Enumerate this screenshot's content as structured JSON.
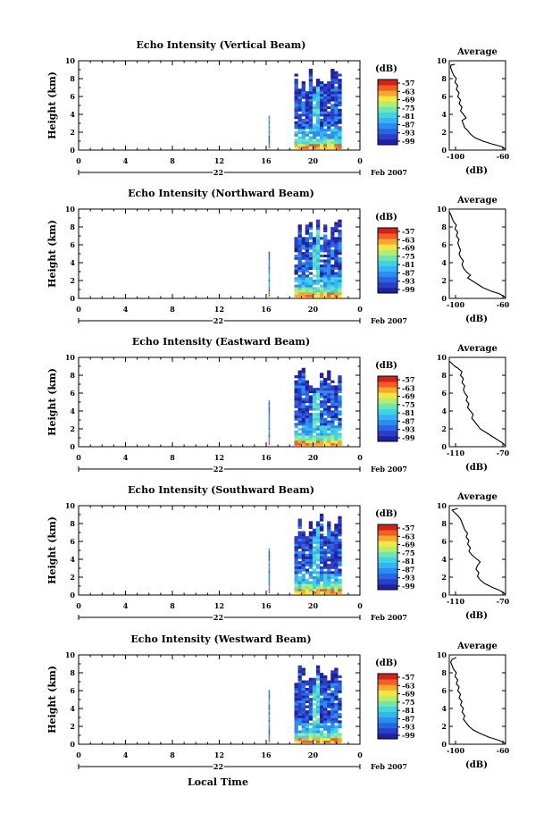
{
  "figure": {
    "bottom_axis_label": "Local Time",
    "date_label": "Feb 2007",
    "day_label": "22",
    "colorbar_unit": "(dB)",
    "avg_title": "Average",
    "avg_xlabel": "(dB)",
    "ylabel": "Height (km)"
  },
  "colors": {
    "scale": [
      "#2020a0",
      "#2a3ec8",
      "#2a64e0",
      "#2a8ef0",
      "#34b4f4",
      "#40d4e0",
      "#6ee6b4",
      "#b4ee70",
      "#f4e640",
      "#f4a830",
      "#f06020",
      "#d82018"
    ]
  },
  "chart_data": [
    {
      "type": "heatmap",
      "title": "Echo Intensity (Vertical Beam)",
      "ylabel": "Height (km)",
      "xlabel": "Local Time",
      "x_ticks": [
        "0",
        "4",
        "8",
        "12",
        "16",
        "20",
        "0"
      ],
      "y_ticks": [
        "0",
        "2",
        "4",
        "6",
        "8",
        "10"
      ],
      "xlim": [
        0,
        24
      ],
      "ylim": [
        0,
        10
      ],
      "colorbar": {
        "unit": "(dB)",
        "ticks": [
          "-57",
          "-63",
          "-69",
          "-75",
          "-81",
          "-87",
          "-93",
          "-99"
        ]
      },
      "average": {
        "title": "Average",
        "xlabel": "(dB)",
        "x_ticks": [
          "-100",
          "-60"
        ],
        "xlim": [
          -100,
          -60
        ],
        "ylim": [
          0,
          10
        ],
        "profile": [
          [
            -60,
            0.1
          ],
          [
            -63,
            0.4
          ],
          [
            -70,
            0.7
          ],
          [
            -76,
            1.0
          ],
          [
            -82,
            1.4
          ],
          [
            -85,
            1.8
          ],
          [
            -87,
            2.2
          ],
          [
            -89,
            2.5
          ],
          [
            -90,
            2.9
          ],
          [
            -91,
            3.3
          ],
          [
            -88,
            3.6
          ],
          [
            -90,
            4.0
          ],
          [
            -92,
            4.4
          ],
          [
            -91,
            4.8
          ],
          [
            -93,
            5.2
          ],
          [
            -92,
            5.6
          ],
          [
            -94,
            6.0
          ],
          [
            -93,
            6.4
          ],
          [
            -95,
            6.8
          ],
          [
            -94,
            7.2
          ],
          [
            -96,
            7.6
          ],
          [
            -95,
            8.0
          ],
          [
            -97,
            8.4
          ],
          [
            -98,
            8.8
          ],
          [
            -99,
            9.2
          ],
          [
            -99,
            9.5
          ],
          [
            -96,
            9.6
          ]
        ]
      }
    },
    {
      "type": "heatmap",
      "title": "Echo Intensity (Northward Beam)",
      "ylabel": "Height (km)",
      "xlabel": "Local Time",
      "x_ticks": [
        "0",
        "4",
        "8",
        "12",
        "16",
        "20",
        "0"
      ],
      "y_ticks": [
        "0",
        "2",
        "4",
        "6",
        "8",
        "10"
      ],
      "xlim": [
        0,
        24
      ],
      "ylim": [
        0,
        10
      ],
      "colorbar": {
        "unit": "(dB)",
        "ticks": [
          "-57",
          "-63",
          "-69",
          "-75",
          "-81",
          "-87",
          "-93",
          "-99"
        ]
      },
      "average": {
        "title": "Average",
        "xlabel": "(dB)",
        "x_ticks": [
          "-100",
          "-60"
        ],
        "xlim": [
          -100,
          -60
        ],
        "ylim": [
          0,
          10
        ],
        "profile": [
          [
            -60,
            0.1
          ],
          [
            -64,
            0.5
          ],
          [
            -70,
            0.8
          ],
          [
            -76,
            1.2
          ],
          [
            -80,
            1.6
          ],
          [
            -84,
            2.0
          ],
          [
            -87,
            2.3
          ],
          [
            -85,
            2.6
          ],
          [
            -88,
            3.0
          ],
          [
            -90,
            3.4
          ],
          [
            -91,
            3.8
          ],
          [
            -90,
            4.2
          ],
          [
            -92,
            4.6
          ],
          [
            -93,
            5.0
          ],
          [
            -92,
            5.4
          ],
          [
            -93,
            5.8
          ],
          [
            -94,
            6.2
          ],
          [
            -93,
            6.6
          ],
          [
            -95,
            7.0
          ],
          [
            -94,
            7.4
          ],
          [
            -96,
            7.8
          ],
          [
            -95,
            8.2
          ],
          [
            -97,
            8.6
          ],
          [
            -98,
            9.0
          ],
          [
            -99,
            9.4
          ],
          [
            -100,
            9.7
          ]
        ]
      }
    },
    {
      "type": "heatmap",
      "title": "Echo Intensity (Eastward Beam)",
      "ylabel": "Height (km)",
      "xlabel": "Local Time",
      "x_ticks": [
        "0",
        "4",
        "8",
        "12",
        "16",
        "20",
        "0"
      ],
      "y_ticks": [
        "0",
        "2",
        "4",
        "6",
        "8",
        "10"
      ],
      "xlim": [
        0,
        24
      ],
      "ylim": [
        0,
        10
      ],
      "colorbar": {
        "unit": "(dB)",
        "ticks": [
          "-57",
          "-63",
          "-69",
          "-75",
          "-81",
          "-87",
          "-93",
          "-99"
        ]
      },
      "average": {
        "title": "Average",
        "xlabel": "(dB)",
        "x_ticks": [
          "-110",
          "-70"
        ],
        "xlim": [
          -110,
          -70
        ],
        "ylim": [
          0,
          10
        ],
        "profile": [
          [
            -70,
            0.1
          ],
          [
            -72,
            0.4
          ],
          [
            -76,
            0.8
          ],
          [
            -80,
            1.2
          ],
          [
            -84,
            1.6
          ],
          [
            -88,
            2.0
          ],
          [
            -90,
            2.4
          ],
          [
            -92,
            2.8
          ],
          [
            -94,
            3.2
          ],
          [
            -93,
            3.6
          ],
          [
            -95,
            4.0
          ],
          [
            -97,
            4.4
          ],
          [
            -96,
            4.8
          ],
          [
            -98,
            5.2
          ],
          [
            -97,
            5.6
          ],
          [
            -99,
            6.0
          ],
          [
            -100,
            6.4
          ],
          [
            -99,
            6.8
          ],
          [
            -101,
            7.2
          ],
          [
            -100,
            7.6
          ],
          [
            -102,
            8.0
          ],
          [
            -101,
            8.4
          ],
          [
            -104,
            8.8
          ],
          [
            -106,
            9.0
          ],
          [
            -108,
            9.3
          ],
          [
            -110,
            9.6
          ]
        ]
      }
    },
    {
      "type": "heatmap",
      "title": "Echo Intensity (Southward Beam)",
      "ylabel": "Height (km)",
      "xlabel": "Local Time",
      "x_ticks": [
        "0",
        "4",
        "8",
        "12",
        "16",
        "20",
        "0"
      ],
      "y_ticks": [
        "0",
        "2",
        "4",
        "6",
        "8",
        "10"
      ],
      "xlim": [
        0,
        24
      ],
      "ylim": [
        0,
        10
      ],
      "colorbar": {
        "unit": "(dB)",
        "ticks": [
          "-57",
          "-63",
          "-69",
          "-75",
          "-81",
          "-87",
          "-93",
          "-99"
        ]
      },
      "average": {
        "title": "Average",
        "xlabel": "(dB)",
        "x_ticks": [
          "-110",
          "-70"
        ],
        "xlim": [
          -110,
          -70
        ],
        "ylim": [
          0,
          10
        ],
        "profile": [
          [
            -70,
            0.1
          ],
          [
            -74,
            0.5
          ],
          [
            -80,
            0.9
          ],
          [
            -85,
            1.3
          ],
          [
            -88,
            1.7
          ],
          [
            -90,
            2.1
          ],
          [
            -89,
            2.5
          ],
          [
            -91,
            2.9
          ],
          [
            -90,
            3.3
          ],
          [
            -88,
            3.7
          ],
          [
            -91,
            4.1
          ],
          [
            -94,
            4.5
          ],
          [
            -96,
            4.9
          ],
          [
            -95,
            5.3
          ],
          [
            -97,
            5.7
          ],
          [
            -96,
            6.1
          ],
          [
            -98,
            6.5
          ],
          [
            -97,
            6.9
          ],
          [
            -99,
            7.3
          ],
          [
            -100,
            7.7
          ],
          [
            -101,
            8.1
          ],
          [
            -102,
            8.5
          ],
          [
            -104,
            8.9
          ],
          [
            -106,
            9.2
          ],
          [
            -108,
            9.5
          ],
          [
            -104,
            9.7
          ]
        ]
      }
    },
    {
      "type": "heatmap",
      "title": "Echo Intensity (Westward Beam)",
      "ylabel": "Height (km)",
      "xlabel": "Local Time",
      "x_ticks": [
        "0",
        "4",
        "8",
        "12",
        "16",
        "20",
        "0"
      ],
      "y_ticks": [
        "0",
        "2",
        "4",
        "6",
        "8",
        "10"
      ],
      "xlim": [
        0,
        24
      ],
      "ylim": [
        0,
        10
      ],
      "colorbar": {
        "unit": "(dB)",
        "ticks": [
          "-57",
          "-63",
          "-69",
          "-75",
          "-81",
          "-87",
          "-93",
          "-99"
        ]
      },
      "average": {
        "title": "Average",
        "xlabel": "(dB)",
        "x_ticks": [
          "-100",
          "-60"
        ],
        "xlim": [
          -100,
          -60
        ],
        "ylim": [
          0,
          10
        ],
        "profile": [
          [
            -60,
            0.1
          ],
          [
            -64,
            0.4
          ],
          [
            -72,
            0.8
          ],
          [
            -78,
            1.2
          ],
          [
            -83,
            1.6
          ],
          [
            -86,
            2.0
          ],
          [
            -88,
            2.4
          ],
          [
            -90,
            2.8
          ],
          [
            -89,
            3.2
          ],
          [
            -91,
            3.6
          ],
          [
            -90,
            4.0
          ],
          [
            -92,
            4.4
          ],
          [
            -91,
            4.8
          ],
          [
            -93,
            5.2
          ],
          [
            -92,
            5.6
          ],
          [
            -94,
            6.0
          ],
          [
            -93,
            6.4
          ],
          [
            -95,
            6.8
          ],
          [
            -94,
            7.2
          ],
          [
            -96,
            7.6
          ],
          [
            -95,
            8.0
          ],
          [
            -97,
            8.4
          ],
          [
            -98,
            8.8
          ],
          [
            -99,
            9.2
          ],
          [
            -98,
            9.5
          ],
          [
            -95,
            9.7
          ]
        ]
      }
    }
  ]
}
